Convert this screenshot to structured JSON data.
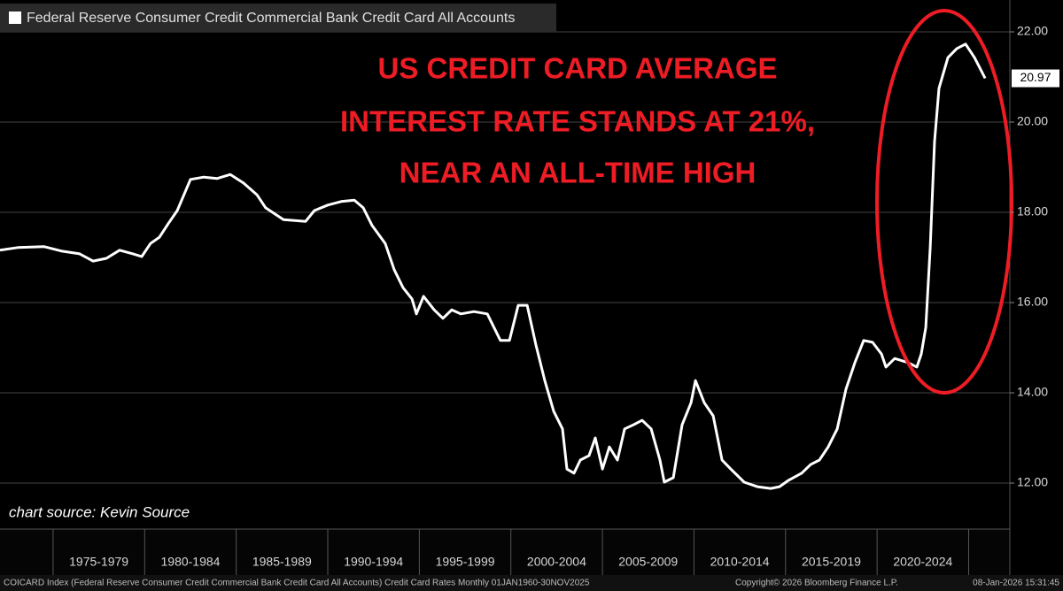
{
  "chart_data": {
    "type": "line",
    "legend_label": "Federal Reserve Consumer Credit Commercial Bank Credit Card All Accounts",
    "annotation": [
      "US CREDIT CARD AVERAGE",
      "INTEREST RATE STANDS AT 21%,",
      "NEAR AN ALL-TIME HIGH"
    ],
    "source_note": "chart source: Kevin Source",
    "footer_left": "COICARD Index (Federal Reserve Consumer Credit Commercial Bank Credit Card All Accounts) Credit Card Rates Monthly 01JAN1960-30NOV2025",
    "footer_copyright": "Copyright© 2026 Bloomberg Finance L.P.",
    "footer_date": "08-Jan-2026 15:31:45",
    "xlim": [
      1972.1,
      2027.25
    ],
    "ylim": [
      11,
      22.5
    ],
    "xticks": [
      {
        "value": 1977.5,
        "label": "1975-1979"
      },
      {
        "value": 1982.5,
        "label": "1980-1984"
      },
      {
        "value": 1987.5,
        "label": "1985-1989"
      },
      {
        "value": 1992.5,
        "label": "1990-1994"
      },
      {
        "value": 1997.5,
        "label": "1995-1999"
      },
      {
        "value": 2002.5,
        "label": "2000-2004"
      },
      {
        "value": 2007.5,
        "label": "2005-2009"
      },
      {
        "value": 2012.5,
        "label": "2010-2014"
      },
      {
        "value": 2017.5,
        "label": "2015-2019"
      },
      {
        "value": 2022.5,
        "label": "2020-2024"
      }
    ],
    "yticks": [
      {
        "value": 12,
        "label": "12.00"
      },
      {
        "value": 14,
        "label": "14.00"
      },
      {
        "value": 16,
        "label": "16.00"
      },
      {
        "value": 18,
        "label": "18.00"
      },
      {
        "value": 20,
        "label": "20.00"
      },
      {
        "value": 22,
        "label": "22.00"
      }
    ],
    "grid": true,
    "series": [
      {
        "name": "Federal Reserve Consumer Credit Commercial Bank Credit Card All Accounts",
        "color": "#ffffff",
        "x": [
          1972.1,
          1973.07,
          1974.52,
          1975.49,
          1976.45,
          1977.18,
          1977.91,
          1978.63,
          1979.36,
          1979.84,
          1980.32,
          1980.81,
          1981.29,
          1981.78,
          1982.5,
          1983.23,
          1983.95,
          1984.68,
          1985.4,
          1986.13,
          1986.61,
          1987.58,
          1988.79,
          1989.27,
          1990.0,
          1990.73,
          1991.45,
          1991.94,
          1992.42,
          1993.14,
          1993.63,
          1994.11,
          1994.6,
          1994.84,
          1995.23,
          1995.81,
          1996.29,
          1996.77,
          1997.26,
          1997.98,
          1998.71,
          1999.43,
          1999.92,
          2000.4,
          2000.89,
          2001.37,
          2001.85,
          2002.34,
          2002.82,
          2003.06,
          2003.45,
          2003.79,
          2004.27,
          2004.61,
          2005.0,
          2005.38,
          2005.82,
          2006.21,
          2006.69,
          2007.17,
          2007.66,
          2008.14,
          2008.38,
          2008.87,
          2009.35,
          2009.84,
          2010.08,
          2010.56,
          2011.05,
          2011.53,
          2012.01,
          2012.74,
          2013.46,
          2014.19,
          2014.67,
          2015.16,
          2015.88,
          2016.37,
          2016.85,
          2017.33,
          2017.82,
          2018.3,
          2018.79,
          2019.27,
          2019.75,
          2020.24,
          2020.48,
          2020.96,
          2021.69,
          2022.17,
          2022.41,
          2022.66,
          2022.9,
          2023.14,
          2023.38,
          2023.87,
          2024.35,
          2024.83,
          2025.32,
          2025.56,
          2025.9
        ],
        "values": [
          17.16,
          17.22,
          17.24,
          17.14,
          17.08,
          16.92,
          16.98,
          17.16,
          17.08,
          17.02,
          17.31,
          17.45,
          17.75,
          18.04,
          18.73,
          18.78,
          18.75,
          18.84,
          18.65,
          18.39,
          18.1,
          17.84,
          17.8,
          18.04,
          18.16,
          18.24,
          18.27,
          18.1,
          17.71,
          17.31,
          16.73,
          16.33,
          16.08,
          15.75,
          16.14,
          15.84,
          15.65,
          15.84,
          15.75,
          15.8,
          15.75,
          15.16,
          15.16,
          15.94,
          15.94,
          15.06,
          14.27,
          13.59,
          13.2,
          12.31,
          12.22,
          12.51,
          12.61,
          13.0,
          12.31,
          12.8,
          12.51,
          13.2,
          13.29,
          13.39,
          13.2,
          12.51,
          12.02,
          12.12,
          13.29,
          13.78,
          14.27,
          13.78,
          13.49,
          12.51,
          12.31,
          12.02,
          11.92,
          11.88,
          11.92,
          12.06,
          12.22,
          12.41,
          12.51,
          12.8,
          13.2,
          14.08,
          14.67,
          15.16,
          15.12,
          14.86,
          14.57,
          14.76,
          14.67,
          14.57,
          14.86,
          15.45,
          17.22,
          19.57,
          20.75,
          21.43,
          21.63,
          21.73,
          21.43,
          21.24,
          20.97
        ]
      }
    ]
  }
}
